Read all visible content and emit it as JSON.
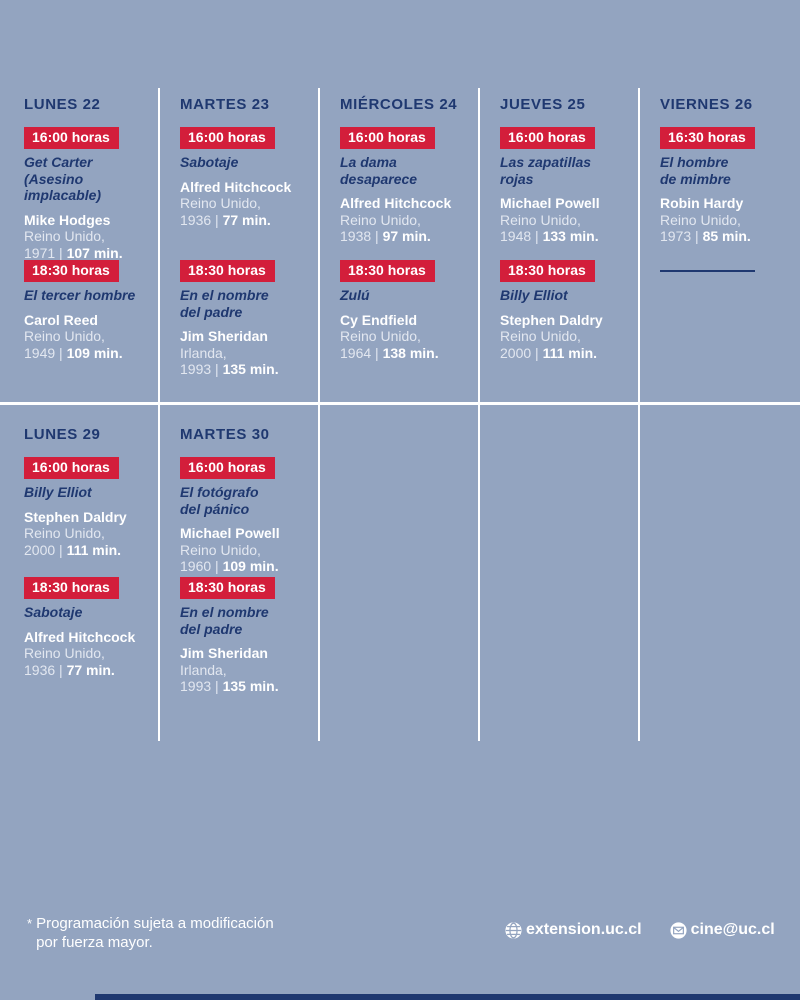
{
  "page": {
    "background_color": "#93A4C0",
    "accent_red": "#D31E3B",
    "navy": "#1F3870",
    "meta_separator": " | "
  },
  "schedule": {
    "rows": [
      {
        "days": [
          {
            "name": "LUNES 22",
            "screenings": [
              {
                "time": "16:00 horas",
                "title": "Get Carter\n(Asesino\nimplacable)",
                "director": "Mike Hodges",
                "country": "Reino Unido,",
                "year": "1971",
                "duration": "107 min."
              },
              {
                "time": "18:30 horas",
                "title": "El tercer hombre",
                "director": "Carol Reed",
                "country": "Reino Unido,",
                "year": "1949",
                "duration": "109 min."
              }
            ]
          },
          {
            "name": "MARTES 23",
            "screenings": [
              {
                "time": "16:00 horas",
                "title": "Sabotaje",
                "director": "Alfred Hitchcock",
                "country": "Reino Unido,",
                "year": "1936",
                "duration": "77 min."
              },
              {
                "time": "18:30 horas",
                "title": "En el nombre\ndel padre",
                "director": "Jim Sheridan",
                "country": "Irlanda,",
                "year": "1993",
                "duration": "135 min."
              }
            ]
          },
          {
            "name": "MIÉRCOLES 24",
            "screenings": [
              {
                "time": "16:00 horas",
                "title": "La dama\ndesaparece",
                "director": "Alfred Hitchcock",
                "country": "Reino Unido,",
                "year": "1938",
                "duration": "97 min."
              },
              {
                "time": "18:30 horas",
                "title": "Zulú",
                "director": "Cy Endfield",
                "country": "Reino Unido,",
                "year": "1964",
                "duration": "138 min."
              }
            ]
          },
          {
            "name": "JUEVES 25",
            "screenings": [
              {
                "time": "16:00 horas",
                "title": "Las zapatillas\nrojas",
                "director": "Michael Powell",
                "country": "Reino Unido,",
                "year": "1948",
                "duration": "133 min."
              },
              {
                "time": "18:30 horas",
                "title": "Billy Elliot",
                "director": "Stephen Daldry",
                "country": "Reino Unido,",
                "year": "2000",
                "duration": "111 min."
              }
            ]
          },
          {
            "name": "VIERNES 26",
            "empty_slot": true,
            "screenings": [
              {
                "time": "16:30 horas",
                "title": "El hombre\nde mimbre",
                "director": "Robin Hardy",
                "country": "Reino Unido,",
                "year": "1973",
                "duration": "85 min."
              }
            ]
          }
        ]
      },
      {
        "days": [
          {
            "name": "LUNES 29",
            "screenings": [
              {
                "time": "16:00 horas",
                "title": "Billy Elliot",
                "director": "Stephen Daldry",
                "country": "Reino Unido,",
                "year": "2000",
                "duration": "111 min."
              },
              {
                "time": "18:30 horas",
                "title": "Sabotaje",
                "director": "Alfred Hitchcock",
                "country": "Reino Unido,",
                "year": "1936",
                "duration": "77 min."
              }
            ]
          },
          {
            "name": "MARTES 30",
            "screenings": [
              {
                "time": "16:00 horas",
                "title": "El fotógrafo\ndel pánico",
                "director": "Michael Powell",
                "country": "Reino Unido,",
                "year": "1960",
                "duration": "109 min."
              },
              {
                "time": "18:30 horas",
                "title": "En el nombre\ndel padre",
                "director": "Jim Sheridan",
                "country": "Irlanda,",
                "year": "1993",
                "duration": "135 min."
              }
            ]
          }
        ]
      }
    ]
  },
  "footer": {
    "note_marker": "*",
    "note": "Programación sujeta a modificación\npor fuerza mayor.",
    "website": "extension.uc.cl",
    "email": "cine@uc.cl"
  }
}
